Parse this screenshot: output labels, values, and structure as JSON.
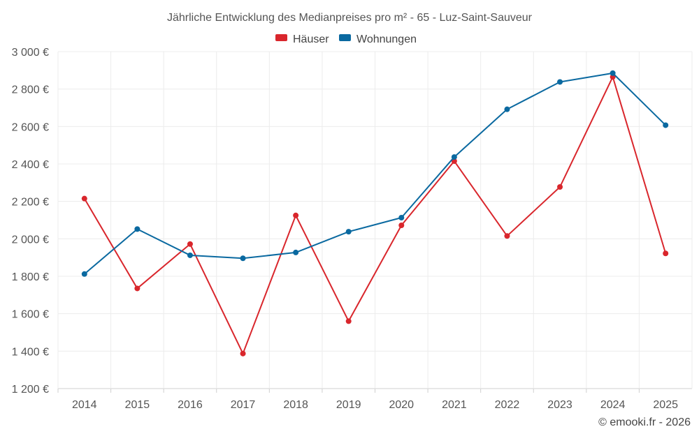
{
  "chart_data": {
    "type": "line",
    "title": "Jährliche Entwicklung des Medianpreises pro m² - 65 - Luz-Saint-Sauveur",
    "categories": [
      "2014",
      "2015",
      "2016",
      "2017",
      "2018",
      "2019",
      "2020",
      "2021",
      "2022",
      "2023",
      "2024",
      "2025"
    ],
    "series": [
      {
        "name": "Häuser",
        "color": "#d9262c",
        "values": [
          2215,
          1735,
          1972,
          1387,
          2125,
          1560,
          2072,
          2415,
          2015,
          2277,
          2865,
          1922
        ]
      },
      {
        "name": "Wohnungen",
        "color": "#0a69a0",
        "values": [
          1812,
          2052,
          1912,
          1896,
          1927,
          2038,
          2113,
          2437,
          2692,
          2838,
          2885,
          2607
        ]
      }
    ],
    "ylim": [
      1200,
      3000
    ],
    "yticks": [
      1200,
      1400,
      1600,
      1800,
      2000,
      2200,
      2400,
      2600,
      2800,
      3000
    ],
    "ytick_labels": [
      "1 200 €",
      "1 400 €",
      "1 600 €",
      "1 800 €",
      "2 000 €",
      "2 200 €",
      "2 400 €",
      "2 600 €",
      "2 800 €",
      "3 000 €"
    ],
    "xlabel": "",
    "ylabel": "",
    "grid": true,
    "legend": "top-center"
  },
  "footer": {
    "copyright": "© emooki.fr - 2026"
  }
}
